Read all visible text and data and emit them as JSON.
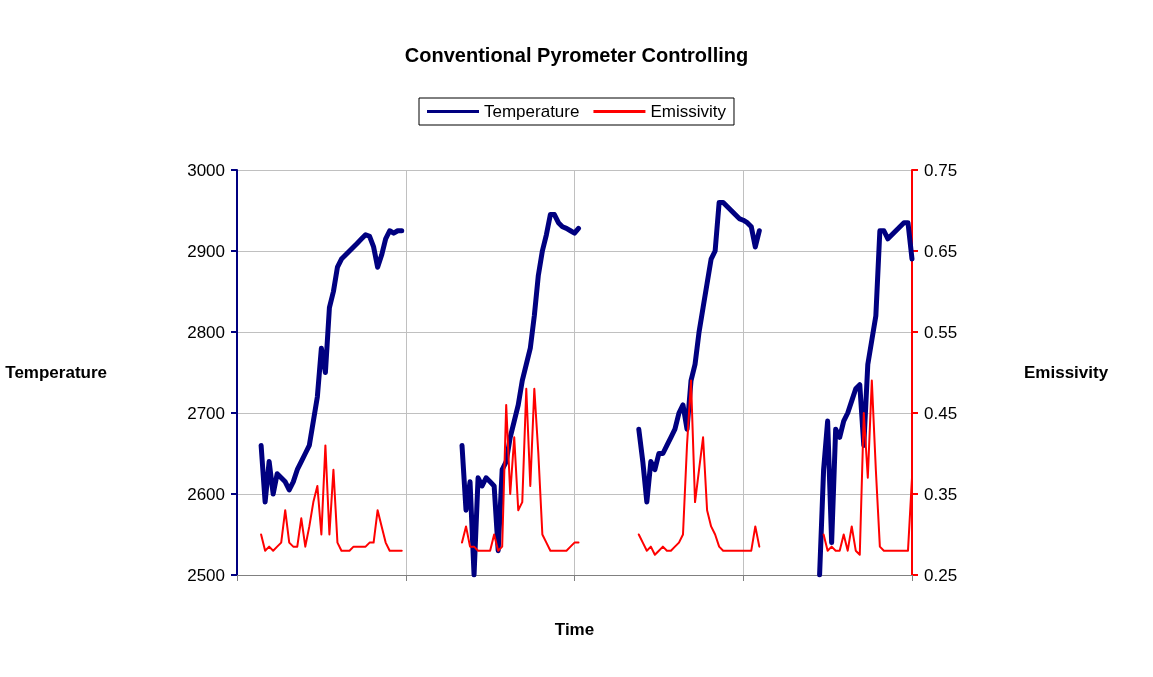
{
  "chart_data": {
    "type": "line",
    "title": "Conventional Pyrometer Controlling",
    "xlabel": "Time",
    "ylabel": "Temperature",
    "y2label": "Emissivity",
    "categories": [
      null,
      null,
      null,
      null,
      null,
      null,
      null,
      null,
      null,
      null,
      null,
      null,
      null,
      null,
      null,
      null,
      null,
      null,
      null,
      null,
      null,
      null,
      null,
      null,
      null,
      null,
      null,
      null,
      null,
      null,
      null,
      null,
      null,
      null,
      null,
      null,
      null,
      null,
      null,
      null,
      null,
      null,
      null,
      null,
      null,
      null,
      null,
      null,
      null,
      null,
      null,
      null,
      null,
      null,
      null,
      null,
      null,
      null,
      null,
      null,
      null,
      null,
      null,
      null,
      null,
      null,
      null,
      null,
      null,
      null,
      null,
      null,
      null,
      null,
      null,
      null,
      null,
      null,
      null,
      null,
      null,
      null,
      null,
      null,
      null,
      null,
      null,
      null,
      null,
      null,
      null,
      null,
      null,
      null,
      null,
      null,
      null,
      null,
      null,
      null,
      null,
      null,
      null,
      null,
      null,
      null,
      null,
      null,
      null,
      null,
      null,
      null,
      null,
      null,
      null,
      null,
      null,
      null,
      null,
      null,
      null,
      null,
      null,
      null,
      null,
      null,
      null,
      null,
      null,
      null,
      null,
      null,
      null,
      null,
      null,
      null,
      null,
      null,
      null,
      null,
      null,
      null,
      null,
      null,
      null,
      null,
      null,
      null,
      null,
      null,
      null,
      null,
      null,
      null,
      null,
      null,
      null,
      null,
      null,
      null,
      null,
      null,
      null,
      null,
      null,
      null,
      null,
      null,
      null
    ],
    "series": [
      {
        "name": "Temperature",
        "color": "#000080",
        "values": [
          null,
          null,
          null,
          null,
          null,
          null,
          2660,
          2590,
          2640,
          2600,
          2625,
          2620,
          2615,
          2605,
          2615,
          2630,
          2640,
          2650,
          2660,
          2690,
          2720,
          2780,
          2750,
          2830,
          2850,
          2880,
          2890,
          2895,
          2900,
          2905,
          2910,
          2915,
          2920,
          2918,
          2905,
          2880,
          2895,
          2915,
          2925,
          2922,
          2925,
          2925,
          null,
          null,
          null,
          null,
          null,
          null,
          null,
          null,
          null,
          null,
          null,
          null,
          null,
          null,
          2660,
          2580,
          2615,
          2500,
          2620,
          2610,
          2620,
          2615,
          2610,
          2530,
          2630,
          2640,
          2670,
          2690,
          2710,
          2740,
          2760,
          2780,
          2820,
          2870,
          2900,
          2920,
          2945,
          2945,
          2935,
          2930,
          2928,
          2925,
          2922,
          2928,
          null,
          null,
          null,
          null,
          null,
          null,
          null,
          null,
          null,
          null,
          null,
          null,
          null,
          null,
          2680,
          2640,
          2590,
          2640,
          2630,
          2650,
          2650,
          2660,
          2670,
          2680,
          2700,
          2710,
          2680,
          2740,
          2760,
          2800,
          2830,
          2860,
          2890,
          2900,
          2960,
          2960,
          2955,
          2950,
          2945,
          2940,
          2938,
          2935,
          2930,
          2905,
          2925,
          null,
          null,
          null,
          null,
          null,
          null,
          null,
          null,
          null,
          null,
          null,
          null,
          null,
          null,
          2500,
          2630,
          2690,
          2540,
          2680,
          2670,
          2690,
          2700,
          2715,
          2730,
          2735,
          2660,
          2760,
          2790,
          2820,
          2925,
          2925,
          2915,
          2920,
          2925,
          2930,
          2935,
          2935,
          2890
        ]
      },
      {
        "name": "Emissivity",
        "color": "#ff0000",
        "axis": "y2",
        "values": [
          null,
          null,
          null,
          null,
          null,
          null,
          0.3,
          0.28,
          0.285,
          0.28,
          0.285,
          0.29,
          0.33,
          0.29,
          0.285,
          0.285,
          0.32,
          0.285,
          0.31,
          0.34,
          0.36,
          0.3,
          0.41,
          0.3,
          0.38,
          0.29,
          0.28,
          0.28,
          0.28,
          0.285,
          0.285,
          0.285,
          0.285,
          0.29,
          0.29,
          0.33,
          0.31,
          0.29,
          0.28,
          0.28,
          0.28,
          0.28,
          null,
          null,
          null,
          null,
          null,
          null,
          null,
          null,
          null,
          null,
          null,
          null,
          null,
          null,
          0.29,
          0.31,
          0.285,
          0.285,
          0.28,
          0.28,
          0.28,
          0.28,
          0.3,
          0.28,
          0.285,
          0.46,
          0.35,
          0.42,
          0.33,
          0.34,
          0.48,
          0.36,
          0.48,
          0.4,
          0.3,
          0.29,
          0.28,
          0.28,
          0.28,
          0.28,
          0.28,
          0.285,
          0.29,
          0.29,
          null,
          null,
          null,
          null,
          null,
          null,
          null,
          null,
          null,
          null,
          null,
          null,
          null,
          null,
          0.3,
          0.29,
          0.28,
          0.285,
          0.275,
          0.28,
          0.285,
          0.28,
          0.28,
          0.285,
          0.29,
          0.3,
          0.41,
          0.49,
          0.34,
          0.38,
          0.42,
          0.33,
          0.31,
          0.3,
          0.285,
          0.28,
          0.28,
          0.28,
          0.28,
          0.28,
          0.28,
          0.28,
          0.28,
          0.31,
          0.285,
          null,
          null,
          null,
          null,
          null,
          null,
          null,
          null,
          null,
          null,
          null,
          null,
          null,
          null,
          null,
          0.3,
          0.28,
          0.285,
          0.28,
          0.28,
          0.3,
          0.28,
          0.31,
          0.28,
          0.275,
          0.45,
          0.37,
          0.49,
          0.38,
          0.285,
          0.28,
          0.28,
          0.28,
          0.28,
          0.28,
          0.28,
          0.28,
          0.37
        ]
      }
    ],
    "ylim": [
      2500,
      3000
    ],
    "yticks": [
      2500,
      2600,
      2700,
      2800,
      2900,
      3000
    ],
    "y2lim": [
      0.25,
      0.75
    ],
    "y2ticks": [
      0.25,
      0.35,
      0.45,
      0.55,
      0.65,
      0.75
    ],
    "grid": true,
    "legend": "top",
    "marker": "none",
    "line_style": "solid"
  }
}
